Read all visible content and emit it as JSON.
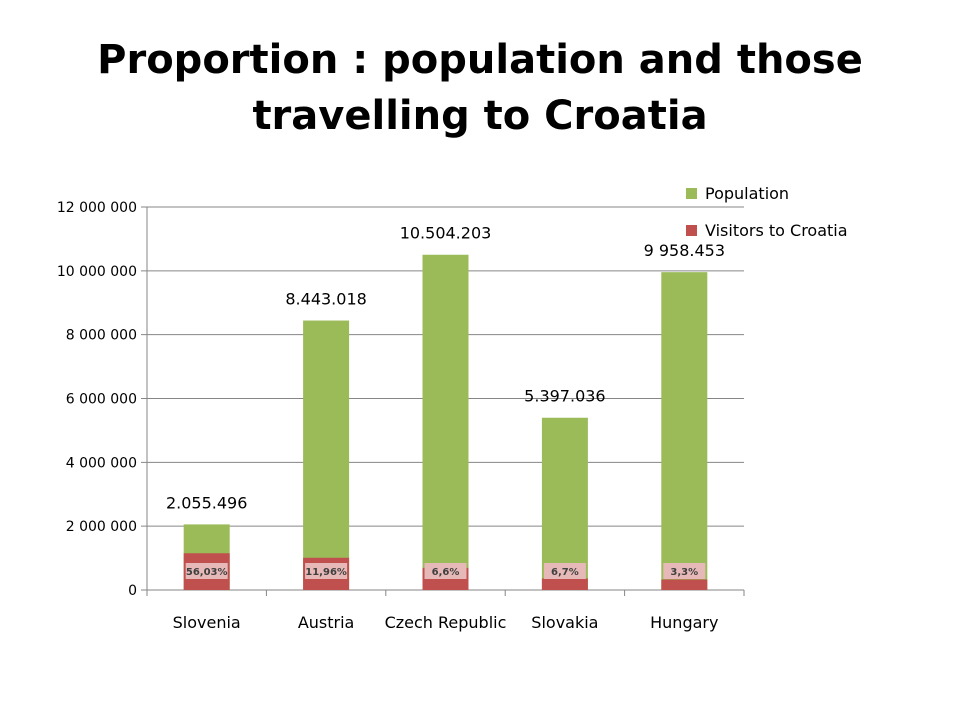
{
  "chart_data": {
    "type": "bar",
    "stacked": true,
    "title": "Proportion : population and those travelling to Croatia",
    "xlabel": "",
    "ylabel": "",
    "ylim": [
      0,
      12000000
    ],
    "y_ticks": [
      "0",
      "2 000 000",
      "4 000 000",
      "6 000 000",
      "8 000 000",
      "10 000 000",
      "12 000 000"
    ],
    "categories": [
      "Slovenia",
      "Austria",
      "Czech Republic",
      "Slovakia",
      "Hungary"
    ],
    "series": [
      {
        "name": "Population",
        "color": "#9BBB59",
        "values": [
          2055496,
          8443018,
          10504203,
          5397036,
          9958453
        ]
      },
      {
        "name": "Visitors to Croatia",
        "color": "#C0504D",
        "values": [
          1151700,
          1009800,
          693300,
          361600,
          328600
        ]
      }
    ],
    "population_labels": [
      "2.055.496",
      "8.443.018",
      "10.504.203",
      "5.397.036",
      "9 958.453"
    ],
    "percent_labels": [
      "56,03%",
      "11,96%",
      "6,6%",
      "6,7%",
      "3,3%"
    ],
    "grid": true,
    "legend_position": "top-right"
  }
}
